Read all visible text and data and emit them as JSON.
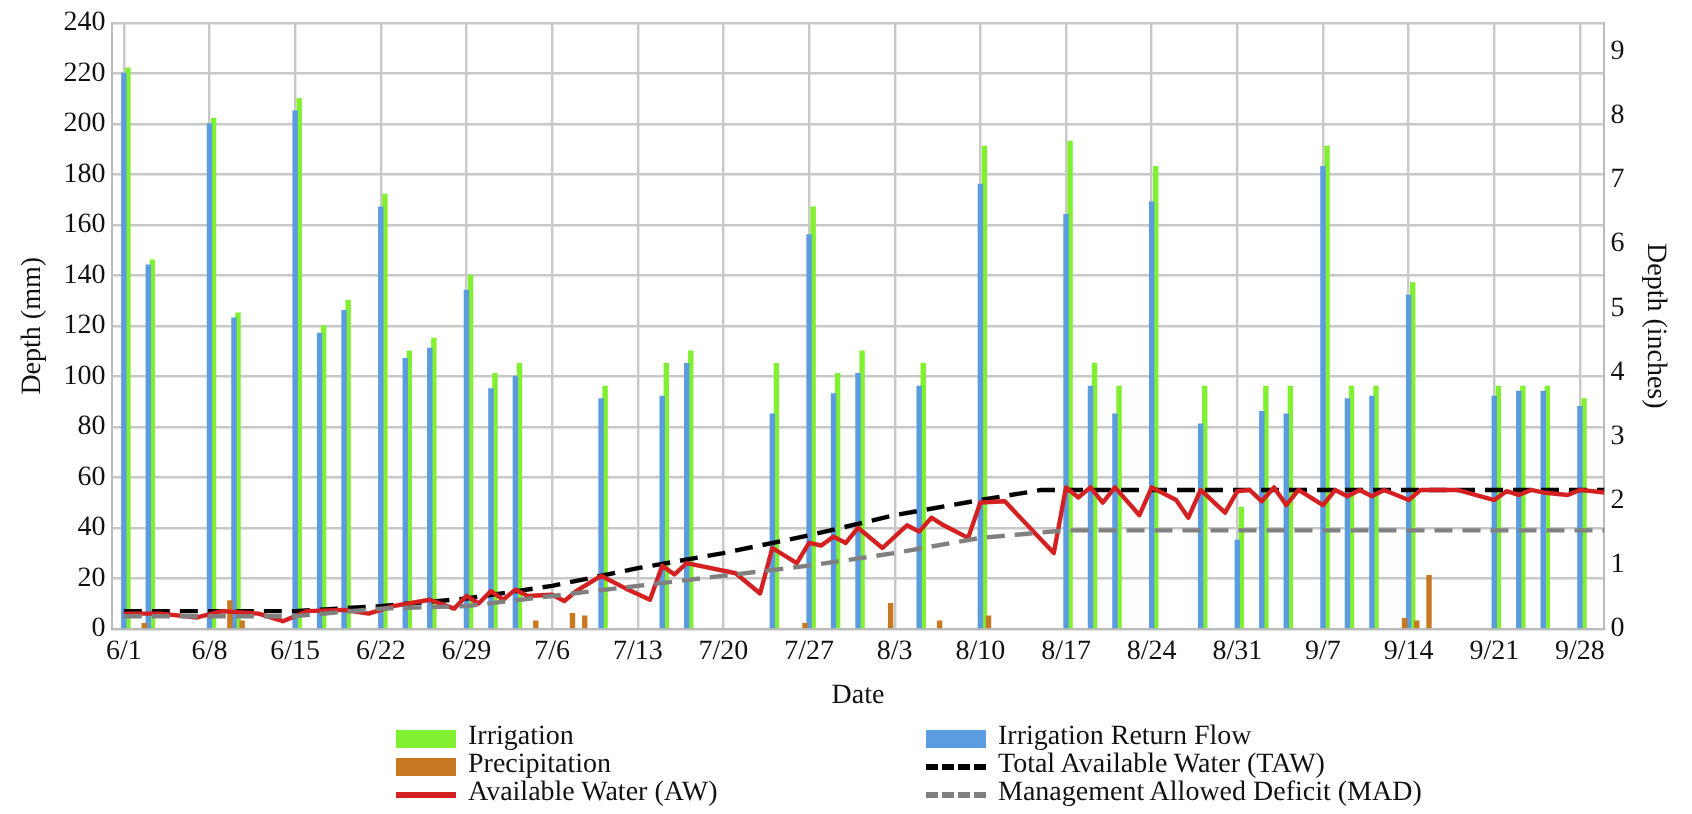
{
  "chart_data": {
    "type": "bar",
    "xlabel": "Date",
    "ylabel": "Depth (mm)",
    "y2label": "Depth (inches)",
    "grid": true,
    "legend": "bottom",
    "xlim": [
      "--05-31",
      "--09-30"
    ],
    "xticks": [
      {
        "value": "--06-01",
        "label": "6/1"
      },
      {
        "value": "--06-08",
        "label": "6/8"
      },
      {
        "value": "--06-15",
        "label": "6/15"
      },
      {
        "value": "--06-22",
        "label": "6/22"
      },
      {
        "value": "--06-29",
        "label": "6/29"
      },
      {
        "value": "--07-06",
        "label": "7/6"
      },
      {
        "value": "--07-13",
        "label": "7/13"
      },
      {
        "value": "--07-20",
        "label": "7/20"
      },
      {
        "value": "--07-27",
        "label": "7/27"
      },
      {
        "value": "--08-03",
        "label": "8/3"
      },
      {
        "value": "--08-10",
        "label": "8/10"
      },
      {
        "value": "--08-17",
        "label": "8/17"
      },
      {
        "value": "--08-24",
        "label": "8/24"
      },
      {
        "value": "--08-31",
        "label": "8/31"
      },
      {
        "value": "--09-07",
        "label": "9/7"
      },
      {
        "value": "--09-14",
        "label": "9/14"
      },
      {
        "value": "--09-21",
        "label": "9/21"
      },
      {
        "value": "--09-28",
        "label": "9/28"
      }
    ],
    "ylim": [
      0,
      240
    ],
    "yticks": [
      0,
      20,
      40,
      60,
      80,
      100,
      120,
      140,
      160,
      180,
      200,
      220,
      240
    ],
    "y2lim": [
      0,
      9.45
    ],
    "y2ticks": [
      0,
      1,
      2,
      3,
      4,
      5,
      6,
      7,
      8,
      9
    ],
    "series": [
      {
        "name": "Irrigation",
        "color": "#80f030",
        "x": [
          "--06-01",
          "--06-03",
          "--06-08",
          "--06-10",
          "--06-15",
          "--06-17",
          "--06-19",
          "--06-22",
          "--06-24",
          "--06-26",
          "--06-29",
          "--07-01",
          "--07-03",
          "--07-10",
          "--07-15",
          "--07-17",
          "--07-24",
          "--07-27",
          "--07-29",
          "--07-31",
          "--08-05",
          "--08-10",
          "--08-17",
          "--08-19",
          "--08-21",
          "--08-24",
          "--08-28",
          "--08-31",
          "--09-02",
          "--09-04",
          "--09-07",
          "--09-09",
          "--09-11",
          "--09-14",
          "--09-21",
          "--09-23",
          "--09-25",
          "--09-28"
        ],
        "values": [
          222,
          146,
          202,
          125,
          210,
          120,
          130,
          172,
          110,
          115,
          140,
          101,
          105,
          96,
          105,
          110,
          105,
          167,
          101,
          110,
          105,
          191,
          193,
          105,
          96,
          183,
          96,
          48,
          96,
          96,
          191,
          96,
          96,
          137,
          96,
          96,
          96,
          91
        ]
      },
      {
        "name": "Irrigation Return Flow",
        "color": "#5b9be0",
        "x": [
          "--06-01",
          "--06-03",
          "--06-08",
          "--06-10",
          "--06-15",
          "--06-17",
          "--06-19",
          "--06-22",
          "--06-24",
          "--06-26",
          "--06-29",
          "--07-01",
          "--07-03",
          "--07-10",
          "--07-15",
          "--07-17",
          "--07-24",
          "--07-27",
          "--07-29",
          "--07-31",
          "--08-05",
          "--08-10",
          "--08-17",
          "--08-19",
          "--08-21",
          "--08-24",
          "--08-28",
          "--08-31",
          "--09-02",
          "--09-04",
          "--09-07",
          "--09-09",
          "--09-11",
          "--09-14",
          "--09-21",
          "--09-23",
          "--09-25",
          "--09-28"
        ],
        "values": [
          220,
          144,
          200,
          123,
          205,
          117,
          126,
          167,
          107,
          111,
          134,
          95,
          100,
          91,
          92,
          105,
          85,
          156,
          93,
          101,
          96,
          176,
          164,
          96,
          85,
          169,
          81,
          35,
          86,
          85,
          183,
          91,
          92,
          132,
          92,
          94,
          94,
          88
        ]
      },
      {
        "name": "Precipitation",
        "color": "#c87820",
        "x": [
          "--06-03",
          "--06-10",
          "--06-11",
          "--07-05",
          "--07-08",
          "--07-09",
          "--07-27",
          "--08-03",
          "--08-07",
          "--08-11",
          "--09-14",
          "--09-15",
          "--09-16"
        ],
        "values": [
          2,
          11,
          3,
          3,
          6,
          5,
          2,
          10,
          3,
          5,
          4,
          3,
          21
        ]
      },
      {
        "name": "Total Available Water (TAW)",
        "type": "line",
        "line_style": "dashed",
        "color": "#000000",
        "x": [
          "--06-01",
          "--06-15",
          "--06-22",
          "--06-29",
          "--07-06",
          "--07-13",
          "--07-20",
          "--07-27",
          "--08-03",
          "--08-10",
          "--08-15",
          "--09-30"
        ],
        "values": [
          7,
          7,
          9,
          12,
          17,
          24,
          30,
          37,
          45,
          51,
          55,
          55
        ]
      },
      {
        "name": "Available Water (AW)",
        "type": "line",
        "line_style": "solid",
        "color": "#d42020",
        "x": [
          "--06-01",
          "--06-04",
          "--06-07",
          "--06-09",
          "--06-12",
          "--06-14",
          "--06-16",
          "--06-19",
          "--06-21",
          "--06-23",
          "--06-26",
          "--06-28",
          "--06-29",
          "--06-30",
          "--07-01",
          "--07-02",
          "--07-03",
          "--07-04",
          "--07-06",
          "--07-07",
          "--07-08",
          "--07-10",
          "--07-12",
          "--07-14",
          "--07-15",
          "--07-16",
          "--07-17",
          "--07-21",
          "--07-23",
          "--07-24",
          "--07-26",
          "--07-27",
          "--07-28",
          "--07-29",
          "--07-30",
          "--07-31",
          "--08-02",
          "--08-04",
          "--08-05",
          "--08-06",
          "--08-07",
          "--08-09",
          "--08-10",
          "--08-12",
          "--08-16",
          "--08-17",
          "--08-18",
          "--08-19",
          "--08-20",
          "--08-21",
          "--08-23",
          "--08-24",
          "--08-26",
          "--08-27",
          "--08-28",
          "--08-30",
          "--08-31",
          "--09-01",
          "--09-02",
          "--09-03",
          "--09-04",
          "--09-05",
          "--09-07",
          "--09-08",
          "--09-09",
          "--09-10",
          "--09-11",
          "--09-12",
          "--09-14",
          "--09-15",
          "--09-18",
          "--09-21",
          "--09-22",
          "--09-23",
          "--09-24",
          "--09-25",
          "--09-27",
          "--09-28",
          "--09-30"
        ],
        "values": [
          6,
          6,
          4.5,
          7,
          6,
          3,
          7,
          7.5,
          6,
          9,
          11.5,
          8,
          13,
          10,
          15,
          11.5,
          15.5,
          13,
          13.5,
          11,
          15,
          21,
          16,
          11.5,
          25,
          21.5,
          26,
          22,
          14,
          32,
          26,
          34,
          33,
          36.5,
          34,
          40,
          32,
          41,
          38.5,
          44,
          41,
          36,
          50,
          50.5,
          30,
          56,
          52,
          56,
          50,
          56,
          45,
          56,
          51,
          44,
          55,
          46,
          54.5,
          55,
          50.5,
          56,
          49,
          55,
          49,
          55,
          52.5,
          55,
          52.5,
          55,
          51,
          55,
          55,
          51,
          54.5,
          53,
          55,
          54,
          53,
          55,
          54
        ]
      },
      {
        "name": "Management Allowed Deficit (MAD)",
        "type": "line",
        "line_style": "dashed",
        "color": "#808080",
        "x": [
          "--06-01",
          "--06-15",
          "--06-22",
          "--06-29",
          "--07-06",
          "--07-13",
          "--07-20",
          "--07-27",
          "--08-03",
          "--08-10",
          "--08-17",
          "--09-30"
        ],
        "values": [
          5,
          5,
          8,
          9,
          13,
          17,
          21,
          25,
          30,
          36,
          39,
          39
        ]
      }
    ]
  }
}
